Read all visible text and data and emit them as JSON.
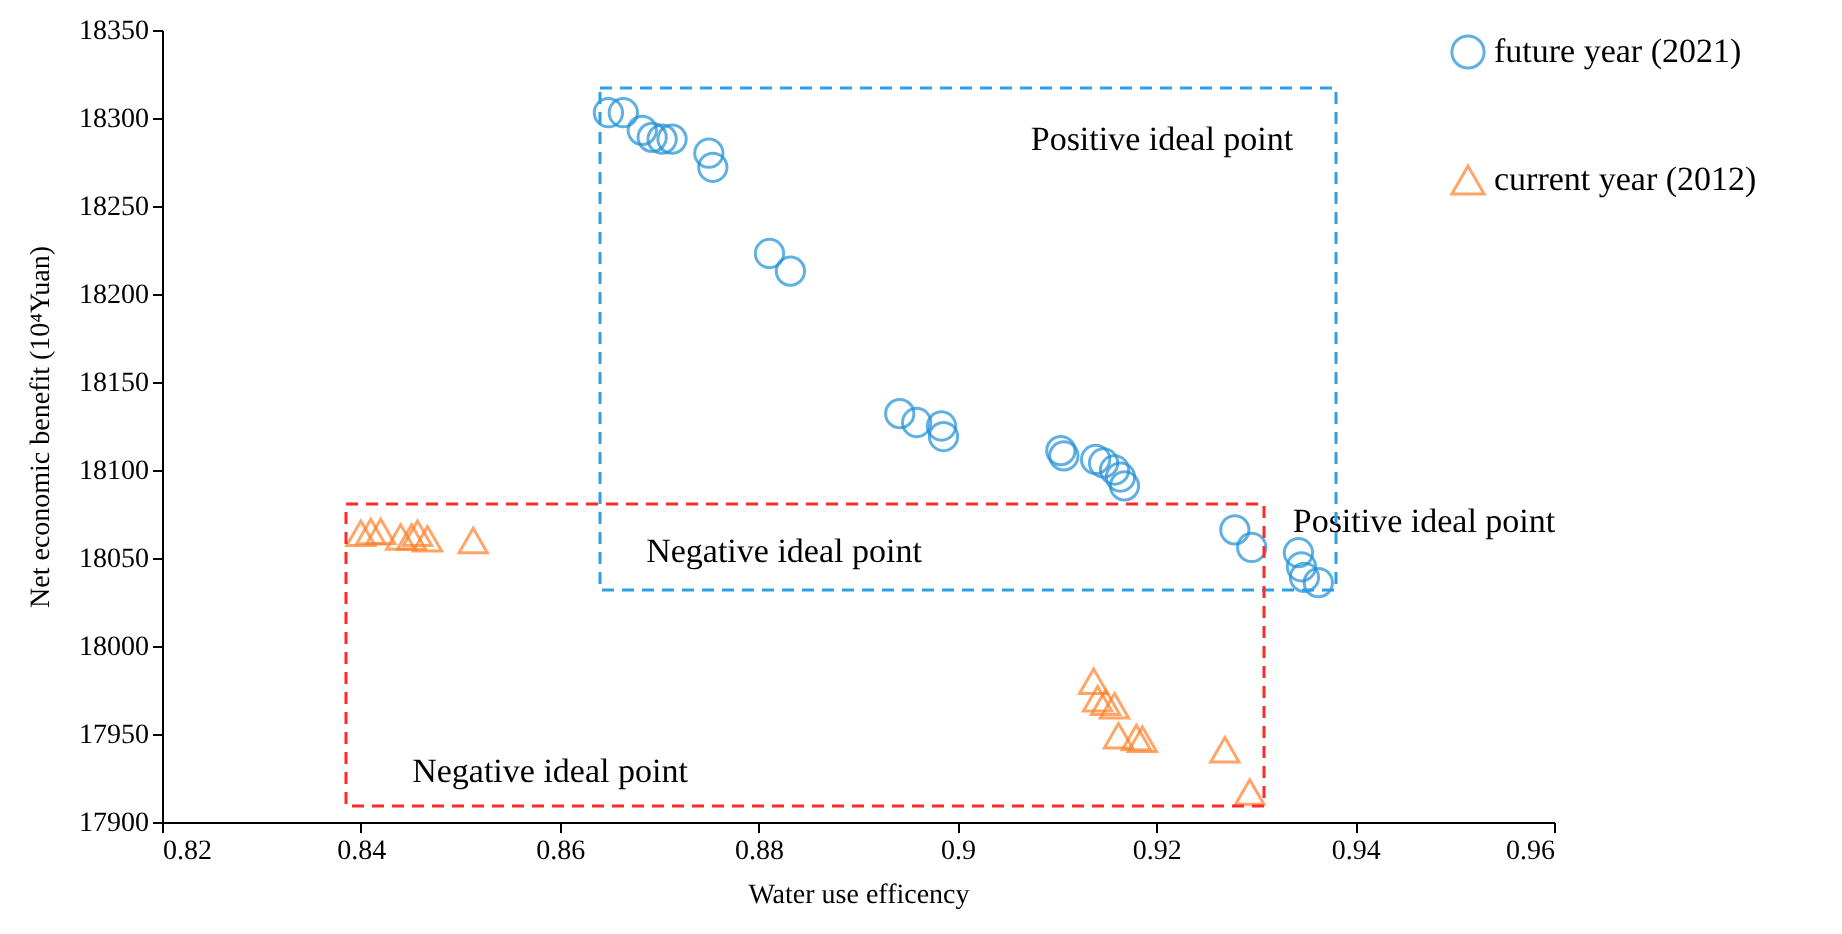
{
  "chart_data": {
    "type": "scatter",
    "xlabel": "Water use efficency",
    "ylabel": "Net economic benefit (10⁴Yuan)",
    "xlim": [
      0.82,
      0.96
    ],
    "xticks": [
      0.82,
      0.84,
      0.86,
      0.88,
      0.9,
      0.92,
      0.94,
      0.96
    ],
    "ylim": [
      17900,
      18350
    ],
    "yticks": [
      17900,
      17950,
      18000,
      18050,
      18100,
      18150,
      18200,
      18250,
      18300,
      18350
    ],
    "grid": false,
    "legend": "top right",
    "series": [
      {
        "name": "future year (2021)",
        "marker": "circle",
        "color": "#1f8fd6",
        "x": [
          0.8649,
          0.8664,
          0.8683,
          0.8693,
          0.8703,
          0.8713,
          0.875,
          0.8754,
          0.8811,
          0.8832,
          0.8942,
          0.8959,
          0.8984,
          0.8986,
          0.9104,
          0.9107,
          0.9139,
          0.9147,
          0.9158,
          0.9164,
          0.9168,
          0.9279,
          0.9296,
          0.9343,
          0.9346,
          0.9349,
          0.9363
        ],
        "values": [
          18303,
          18303,
          18293,
          18289,
          18288,
          18288,
          18280,
          18272,
          18223,
          18213,
          18132,
          18127,
          18125,
          18119,
          18111,
          18108,
          18106,
          18104,
          18100,
          18096,
          18091,
          18066,
          18056,
          18053,
          18045,
          18039,
          18036
        ]
      },
      {
        "name": "current year (2012)",
        "marker": "triangle",
        "color": "#ff7f27",
        "x": [
          0.84,
          0.841,
          0.842,
          0.844,
          0.8451,
          0.8457,
          0.8467,
          0.8513,
          0.9137,
          0.9141,
          0.9149,
          0.9158,
          0.9162,
          0.918,
          0.9186,
          0.9269,
          0.9294
        ],
        "values": [
          18064,
          18065,
          18065,
          18062,
          18062,
          18064,
          18061,
          18060,
          17980,
          17970,
          17968,
          17966,
          17949,
          17948,
          17947,
          17941,
          17917
        ]
      }
    ],
    "annotations": [
      "Positive ideal point",
      "Negative ideal point",
      "Positive ideal point",
      "Negative ideal point"
    ]
  }
}
